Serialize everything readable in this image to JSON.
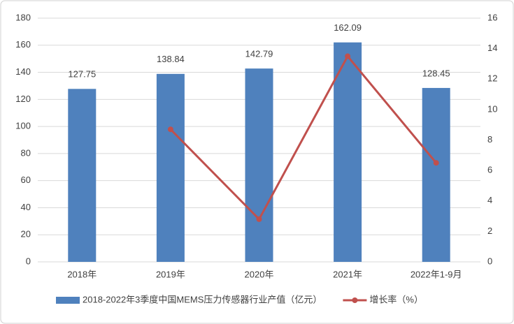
{
  "chart_data": {
    "type": "combo",
    "categories": [
      "2018年",
      "2019年",
      "2020年",
      "2021年",
      "2022年1-9月"
    ],
    "series": [
      {
        "name": "2018-2022年3季度中国MEMS压力传感器行业产值（亿元）",
        "type": "bar",
        "color": "#4f81bd",
        "values": [
          127.75,
          138.84,
          142.79,
          162.09,
          128.45
        ]
      },
      {
        "name": "增长率（%）",
        "type": "line",
        "axis": "y2",
        "color": "#c0504d",
        "values": [
          null,
          8.7,
          2.8,
          13.5,
          6.5
        ]
      }
    ],
    "ylim": [
      0,
      180
    ],
    "yticks": [
      0,
      20,
      40,
      60,
      80,
      100,
      120,
      140,
      160,
      180
    ],
    "y2lim": [
      0,
      16
    ],
    "y2ticks": [
      0,
      2,
      4,
      6,
      8,
      10,
      12,
      14,
      16
    ],
    "grid": true,
    "legend": "bottom"
  }
}
